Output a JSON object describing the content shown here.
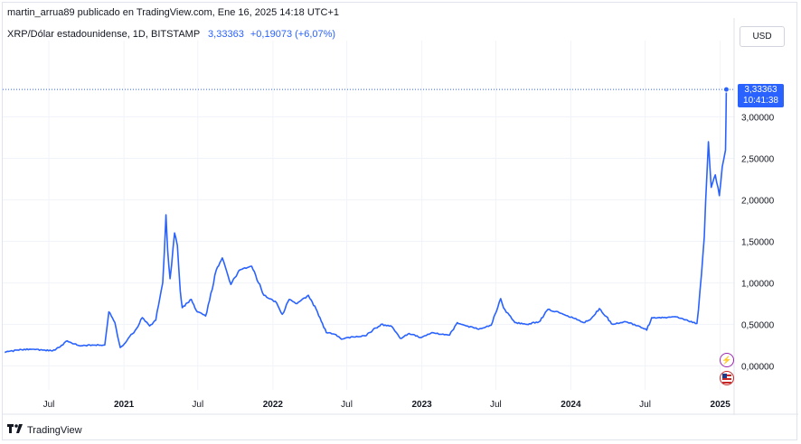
{
  "header": {
    "byline": "martin_arrua89 publicado en TradingView.com, Ene 16, 2025 14:18 UTC+1",
    "symbol_line": "XRP/Dólar estadounidense, 1D, BITSTAMP",
    "last_price": "3,33363",
    "change": "+0,19073 (+6,07%)",
    "currency_button": "USD"
  },
  "last_tag": {
    "price": "3,33363",
    "countdown": "10:41:38"
  },
  "footer": {
    "brand": "TradingView"
  },
  "icons": {
    "event_1": "lightning-icon",
    "event_2": "us-flag-icon",
    "brand": "tradingview-logo-icon"
  },
  "colors": {
    "line": "#2962ff",
    "grid": "#f0f3fa",
    "text": "#131722"
  },
  "chart_data": {
    "type": "line",
    "title": "XRP/Dólar estadounidense, 1D, BITSTAMP",
    "xlabel": "",
    "ylabel": "",
    "series": [
      {
        "name": "XRP/Dólar estadounidense",
        "x": [
          "2020-03-15",
          "2020-04-15",
          "2020-05-15",
          "2020-06-15",
          "2020-07-10",
          "2020-07-25",
          "2020-08-15",
          "2020-09-15",
          "2020-10-15",
          "2020-11-15",
          "2020-11-25",
          "2020-12-10",
          "2020-12-23",
          "2021-01-05",
          "2021-02-01",
          "2021-02-15",
          "2021-03-05",
          "2021-03-20",
          "2021-04-06",
          "2021-04-14",
          "2021-04-18",
          "2021-04-24",
          "2021-05-05",
          "2021-05-12",
          "2021-05-19",
          "2021-05-24",
          "2021-06-15",
          "2021-06-30",
          "2021-07-20",
          "2021-08-15",
          "2021-08-30",
          "2021-09-06",
          "2021-09-20",
          "2021-10-10",
          "2021-11-10",
          "2021-12-10",
          "2022-01-10",
          "2022-01-24",
          "2022-02-10",
          "2022-03-01",
          "2022-03-29",
          "2022-04-20",
          "2022-05-12",
          "2022-06-01",
          "2022-06-18",
          "2022-07-15",
          "2022-08-15",
          "2022-09-23",
          "2022-10-20",
          "2022-11-09",
          "2022-12-01",
          "2022-12-30",
          "2023-01-25",
          "2023-02-15",
          "2023-03-10",
          "2023-03-29",
          "2023-04-20",
          "2023-05-20",
          "2023-06-20",
          "2023-07-13",
          "2023-07-20",
          "2023-08-17",
          "2023-09-15",
          "2023-10-15",
          "2023-11-06",
          "2023-12-10",
          "2024-01-10",
          "2024-02-01",
          "2024-02-20",
          "2024-03-11",
          "2024-04-13",
          "2024-05-15",
          "2024-06-15",
          "2024-07-05",
          "2024-07-17",
          "2024-08-15",
          "2024-09-15",
          "2024-10-15",
          "2024-11-05",
          "2024-11-16",
          "2024-11-23",
          "2024-12-03",
          "2024-12-10",
          "2024-12-20",
          "2024-12-30",
          "2025-01-06",
          "2025-01-14",
          "2025-01-16"
        ],
        "y": [
          0.16,
          0.19,
          0.2,
          0.19,
          0.18,
          0.22,
          0.3,
          0.24,
          0.25,
          0.25,
          0.65,
          0.52,
          0.22,
          0.28,
          0.45,
          0.58,
          0.48,
          0.55,
          1.0,
          1.82,
          1.4,
          1.05,
          1.6,
          1.45,
          0.9,
          0.7,
          0.8,
          0.65,
          0.6,
          1.15,
          1.3,
          1.2,
          0.98,
          1.15,
          1.2,
          0.85,
          0.76,
          0.62,
          0.8,
          0.75,
          0.85,
          0.65,
          0.4,
          0.38,
          0.32,
          0.35,
          0.36,
          0.5,
          0.47,
          0.33,
          0.39,
          0.34,
          0.4,
          0.38,
          0.37,
          0.52,
          0.48,
          0.44,
          0.49,
          0.81,
          0.7,
          0.52,
          0.5,
          0.53,
          0.68,
          0.63,
          0.57,
          0.52,
          0.57,
          0.69,
          0.5,
          0.53,
          0.48,
          0.43,
          0.58,
          0.58,
          0.59,
          0.54,
          0.51,
          1.1,
          1.55,
          2.7,
          2.15,
          2.3,
          2.05,
          2.4,
          2.6,
          3.33
        ]
      }
    ],
    "ylim": [
      -0.29,
      3.81
    ],
    "y_ticks": [
      "0,00000",
      "0,50000",
      "1,00000",
      "1,50000",
      "2,00000",
      "2,50000",
      "3,00000"
    ],
    "y_tick_values": [
      0,
      0.5,
      1.0,
      1.5,
      2.0,
      2.5,
      3.0
    ],
    "x_ticks": [
      {
        "label": "Jul",
        "date": "2020-07-01",
        "bold": false
      },
      {
        "label": "2021",
        "date": "2021-01-01",
        "bold": true
      },
      {
        "label": "Jul",
        "date": "2021-07-01",
        "bold": false
      },
      {
        "label": "2022",
        "date": "2022-01-01",
        "bold": true
      },
      {
        "label": "Jul",
        "date": "2022-07-01",
        "bold": false
      },
      {
        "label": "2023",
        "date": "2023-01-01",
        "bold": true
      },
      {
        "label": "Jul",
        "date": "2023-07-01",
        "bold": false
      },
      {
        "label": "2024",
        "date": "2024-01-01",
        "bold": true
      },
      {
        "label": "Jul",
        "date": "2024-07-01",
        "bold": false
      },
      {
        "label": "2025",
        "date": "2025-01-01",
        "bold": true
      }
    ],
    "x_range": [
      "2020-03-10",
      "2025-02-04"
    ],
    "grid": true,
    "legend": "top-left"
  }
}
